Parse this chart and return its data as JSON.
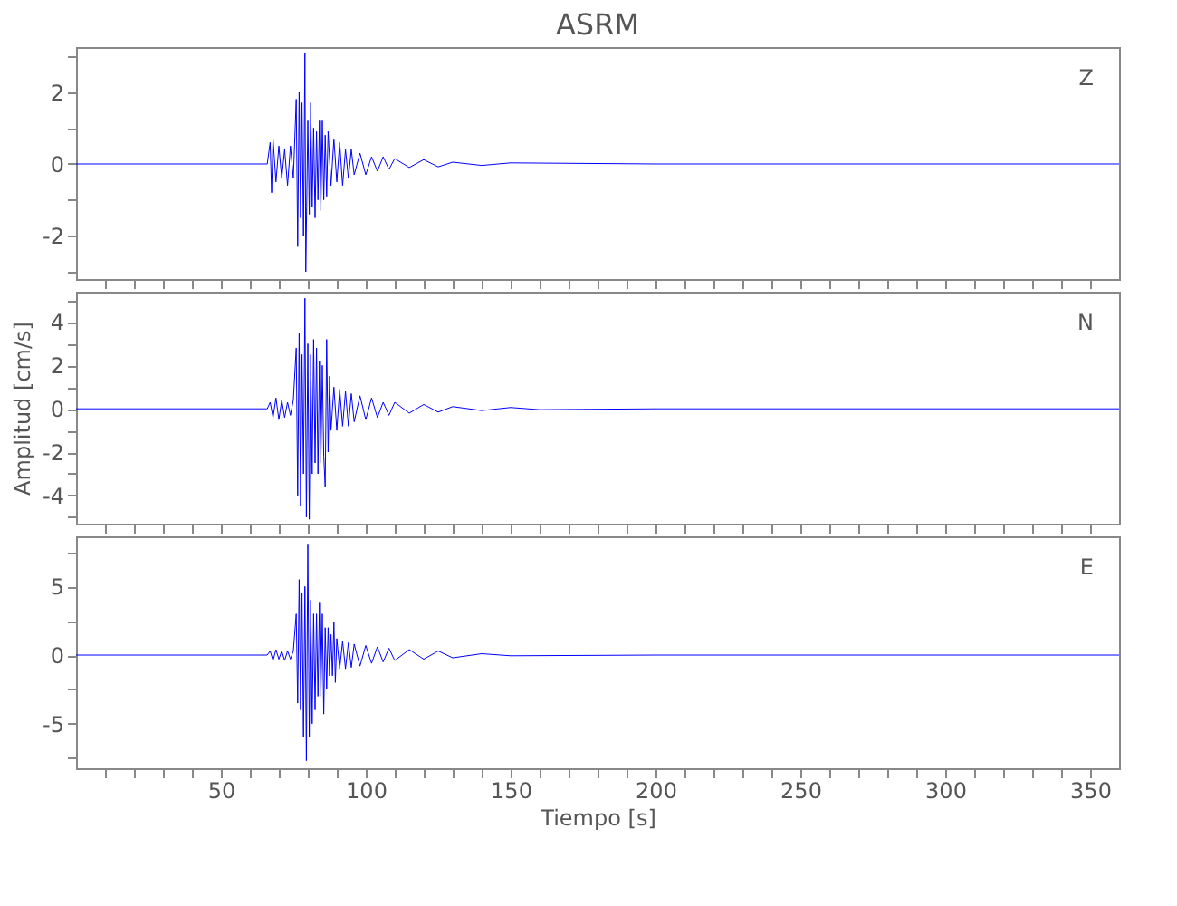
{
  "chart_data": [
    {
      "type": "line",
      "title": "ASRM",
      "annotations": [
        "Z"
      ],
      "tick_labels": "y",
      "xlim": [
        0,
        360
      ],
      "ylim": [
        -3.2,
        3.25
      ],
      "xticks": [
        {
          "value": 10,
          "label": null
        },
        {
          "value": 20,
          "label": null
        },
        {
          "value": 30,
          "label": null
        },
        {
          "value": 40,
          "label": null
        },
        {
          "value": 50,
          "label": null
        },
        {
          "value": 60,
          "label": null
        },
        {
          "value": 70,
          "label": null
        },
        {
          "value": 80,
          "label": null
        },
        {
          "value": 90,
          "label": null
        },
        {
          "value": 100,
          "label": null
        },
        {
          "value": 110,
          "label": null
        },
        {
          "value": 120,
          "label": null
        },
        {
          "value": 130,
          "label": null
        },
        {
          "value": 140,
          "label": null
        },
        {
          "value": 150,
          "label": null
        },
        {
          "value": 160,
          "label": null
        },
        {
          "value": 170,
          "label": null
        },
        {
          "value": 180,
          "label": null
        },
        {
          "value": 190,
          "label": null
        },
        {
          "value": 200,
          "label": null
        },
        {
          "value": 210,
          "label": null
        },
        {
          "value": 220,
          "label": null
        },
        {
          "value": 230,
          "label": null
        },
        {
          "value": 240,
          "label": null
        },
        {
          "value": 250,
          "label": null
        },
        {
          "value": 260,
          "label": null
        },
        {
          "value": 270,
          "label": null
        },
        {
          "value": 280,
          "label": null
        },
        {
          "value": 290,
          "label": null
        },
        {
          "value": 300,
          "label": null
        },
        {
          "value": 310,
          "label": null
        },
        {
          "value": 320,
          "label": null
        },
        {
          "value": 330,
          "label": null
        },
        {
          "value": 340,
          "label": null
        },
        {
          "value": 350,
          "label": null
        }
      ],
      "yticks": [
        {
          "value": -3,
          "label": null
        },
        -2,
        {
          "value": -1,
          "label": null
        },
        0,
        {
          "value": 1,
          "label": null
        },
        2,
        {
          "value": 3,
          "label": null
        }
      ],
      "series": [
        {
          "color": "#0000ff",
          "x": [
            0,
            20,
            40,
            66,
            67,
            67.5,
            68,
            69,
            70,
            71,
            72,
            73,
            74,
            75,
            76,
            76.5,
            77,
            77.5,
            78,
            78.5,
            79,
            79.3,
            80,
            80.5,
            81,
            81.5,
            82,
            82.5,
            83,
            83.5,
            84,
            84.5,
            85,
            85.5,
            86,
            86.5,
            87,
            88,
            89,
            90,
            91,
            92,
            93,
            94,
            95,
            96,
            98,
            100,
            102,
            104,
            106,
            108,
            110,
            115,
            120,
            125,
            130,
            140,
            150,
            200,
            250,
            300,
            360
          ],
          "values": [
            0,
            0,
            0,
            0,
            0.6,
            -0.8,
            0.7,
            -0.5,
            0.5,
            -0.4,
            0.4,
            -0.6,
            0.5,
            -0.4,
            1.8,
            -2.3,
            2.0,
            -1.5,
            1.7,
            -2.0,
            3.1,
            -3.0,
            1.2,
            -1.4,
            1.7,
            -1.2,
            1.0,
            -1.5,
            0.9,
            -1.0,
            1.2,
            -1.3,
            1.2,
            -1.0,
            0.8,
            -0.9,
            0.9,
            -0.6,
            0.7,
            -0.5,
            0.6,
            -0.6,
            0.4,
            -0.4,
            0.4,
            -0.3,
            0.3,
            -0.3,
            0.2,
            -0.2,
            0.2,
            -0.15,
            0.15,
            -0.1,
            0.12,
            -0.08,
            0.05,
            -0.04,
            0.03,
            0,
            0,
            0,
            0
          ]
        }
      ]
    },
    {
      "type": "line",
      "ylabel": "Amplitud [cm/s]",
      "annotations": [
        "N"
      ],
      "tick_labels": "y",
      "xlim": [
        0,
        360
      ],
      "ylim": [
        -5.3,
        5.4
      ],
      "xticks": [
        {
          "value": 10,
          "label": null
        },
        {
          "value": 20,
          "label": null
        },
        {
          "value": 30,
          "label": null
        },
        {
          "value": 40,
          "label": null
        },
        {
          "value": 50,
          "label": null
        },
        {
          "value": 60,
          "label": null
        },
        {
          "value": 70,
          "label": null
        },
        {
          "value": 80,
          "label": null
        },
        {
          "value": 90,
          "label": null
        },
        {
          "value": 100,
          "label": null
        },
        {
          "value": 110,
          "label": null
        },
        {
          "value": 120,
          "label": null
        },
        {
          "value": 130,
          "label": null
        },
        {
          "value": 140,
          "label": null
        },
        {
          "value": 150,
          "label": null
        },
        {
          "value": 160,
          "label": null
        },
        {
          "value": 170,
          "label": null
        },
        {
          "value": 180,
          "label": null
        },
        {
          "value": 190,
          "label": null
        },
        {
          "value": 200,
          "label": null
        },
        {
          "value": 210,
          "label": null
        },
        {
          "value": 220,
          "label": null
        },
        {
          "value": 230,
          "label": null
        },
        {
          "value": 240,
          "label": null
        },
        {
          "value": 250,
          "label": null
        },
        {
          "value": 260,
          "label": null
        },
        {
          "value": 270,
          "label": null
        },
        {
          "value": 280,
          "label": null
        },
        {
          "value": 290,
          "label": null
        },
        {
          "value": 300,
          "label": null
        },
        {
          "value": 310,
          "label": null
        },
        {
          "value": 320,
          "label": null
        },
        {
          "value": 330,
          "label": null
        },
        {
          "value": 340,
          "label": null
        },
        {
          "value": 350,
          "label": null
        }
      ],
      "yticks": [
        {
          "value": -5,
          "label": null
        },
        -4,
        {
          "value": -3,
          "label": null
        },
        -2,
        {
          "value": -1,
          "label": null
        },
        0,
        {
          "value": 1,
          "label": null
        },
        2,
        {
          "value": 3,
          "label": null
        },
        4,
        {
          "value": 5,
          "label": null
        }
      ],
      "series": [
        {
          "color": "#0000ff",
          "x": [
            0,
            20,
            40,
            66,
            67,
            68,
            69,
            70,
            71,
            72,
            73,
            74,
            75,
            76,
            76.5,
            77,
            77.5,
            78,
            78.5,
            79,
            79.5,
            80,
            80.5,
            81,
            81.5,
            82,
            82.5,
            83,
            83.5,
            84,
            84.5,
            85,
            85.5,
            86,
            86.5,
            87,
            87.5,
            88,
            89,
            90,
            91,
            92,
            93,
            94,
            95,
            96,
            98,
            100,
            102,
            104,
            106,
            108,
            110,
            115,
            120,
            125,
            130,
            140,
            150,
            160,
            200,
            250,
            300,
            360
          ],
          "values": [
            0,
            0,
            0,
            0,
            0.3,
            -0.4,
            0.5,
            -0.5,
            0.4,
            -0.4,
            0.3,
            -0.3,
            0.4,
            2.8,
            -4.0,
            3.5,
            -4.5,
            2.5,
            -3.0,
            5.1,
            -5.0,
            3.0,
            -5.1,
            2.5,
            -3.0,
            3.2,
            -2.5,
            2.8,
            -3.0,
            2.2,
            -2.5,
            2.0,
            -2.2,
            -3.6,
            3.2,
            -2.0,
            1.5,
            -1.0,
            1.0,
            -1.0,
            0.9,
            -0.8,
            0.8,
            -0.8,
            0.7,
            -0.6,
            0.6,
            -0.5,
            0.5,
            -0.4,
            0.3,
            -0.3,
            0.3,
            -0.2,
            0.2,
            -0.15,
            0.1,
            -0.08,
            0.06,
            -0.04,
            0,
            0,
            0,
            0
          ]
        }
      ]
    },
    {
      "type": "line",
      "xlabel": "Tiempo [s]",
      "annotations": [
        "E"
      ],
      "xlim": [
        0,
        360
      ],
      "ylim": [
        -8.25,
        8.65
      ],
      "xticks": [
        {
          "value": 10,
          "label": null
        },
        {
          "value": 20,
          "label": null
        },
        {
          "value": 30,
          "label": null
        },
        {
          "value": 40,
          "label": null
        },
        50,
        {
          "value": 60,
          "label": null
        },
        {
          "value": 70,
          "label": null
        },
        {
          "value": 80,
          "label": null
        },
        {
          "value": 90,
          "label": null
        },
        100,
        {
          "value": 110,
          "label": null
        },
        {
          "value": 120,
          "label": null
        },
        {
          "value": 130,
          "label": null
        },
        {
          "value": 140,
          "label": null
        },
        150,
        {
          "value": 160,
          "label": null
        },
        {
          "value": 170,
          "label": null
        },
        {
          "value": 180,
          "label": null
        },
        {
          "value": 190,
          "label": null
        },
        200,
        {
          "value": 210,
          "label": null
        },
        {
          "value": 220,
          "label": null
        },
        {
          "value": 230,
          "label": null
        },
        {
          "value": 240,
          "label": null
        },
        250,
        {
          "value": 260,
          "label": null
        },
        {
          "value": 270,
          "label": null
        },
        {
          "value": 280,
          "label": null
        },
        {
          "value": 290,
          "label": null
        },
        300,
        {
          "value": 310,
          "label": null
        },
        {
          "value": 320,
          "label": null
        },
        {
          "value": 330,
          "label": null
        },
        {
          "value": 340,
          "label": null
        },
        350
      ],
      "yticks": [
        {
          "value": -7.5,
          "label": null
        },
        -5,
        {
          "value": -2.5,
          "label": null
        },
        0,
        {
          "value": 2.5,
          "label": null
        },
        5,
        {
          "value": 7.5,
          "label": null
        }
      ],
      "series": [
        {
          "color": "#0000ff",
          "x": [
            0,
            20,
            40,
            66,
            67,
            68,
            69,
            70,
            71,
            72,
            73,
            74,
            75,
            76,
            76.5,
            77,
            77.5,
            78,
            78.5,
            79,
            79.5,
            80,
            80.5,
            81,
            81.5,
            82,
            82.5,
            83,
            83.5,
            84,
            84.5,
            85,
            85.5,
            86,
            86.5,
            87,
            87.5,
            88,
            88.5,
            89,
            89.5,
            90,
            91,
            92,
            93,
            94,
            95,
            96,
            98,
            100,
            102,
            104,
            106,
            108,
            110,
            115,
            120,
            125,
            130,
            140,
            150,
            200,
            250,
            300,
            360
          ],
          "values": [
            0,
            0,
            0,
            0,
            0.3,
            -0.4,
            0.4,
            -0.3,
            0.3,
            -0.4,
            0.3,
            -0.3,
            0.3,
            3.0,
            -3.5,
            5.5,
            -4.0,
            4.5,
            -6.0,
            5.0,
            -7.7,
            8.1,
            -6.0,
            4.0,
            -5.0,
            3.0,
            -4.0,
            3.0,
            -3.0,
            3.8,
            -3.0,
            3.0,
            -4.3,
            2.0,
            -2.5,
            2.0,
            -1.5,
            1.5,
            -1.5,
            2.4,
            -2.0,
            1.2,
            -1.0,
            1.0,
            -1.0,
            0.9,
            -0.9,
            0.8,
            -0.8,
            0.7,
            -0.6,
            0.6,
            -0.5,
            0.5,
            -0.4,
            0.4,
            -0.3,
            0.3,
            -0.2,
            0.1,
            -0.05,
            0,
            0,
            0,
            0
          ]
        }
      ]
    }
  ]
}
